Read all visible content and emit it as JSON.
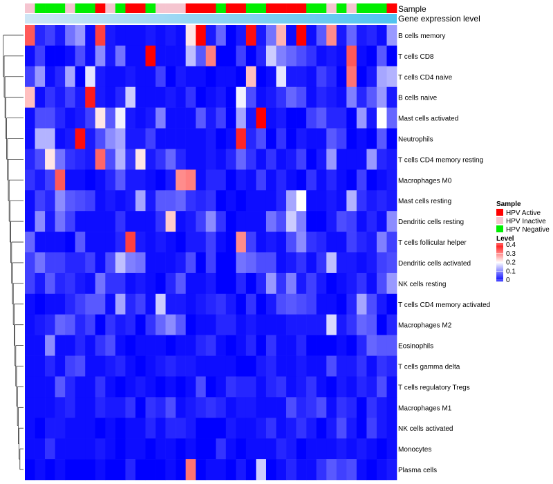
{
  "chart_data": {
    "type": "heatmap",
    "title": "",
    "annotation_tracks": [
      "Sample",
      "Gene expression level"
    ],
    "sample_groups": [
      "HPV Inactive",
      "HPV Negative",
      "HPV Negative",
      "HPV Negative",
      "HPV Inactive",
      "HPV Negative",
      "HPV Negative",
      "HPV Active",
      "HPV Inactive",
      "HPV Negative",
      "HPV Active",
      "HPV Active",
      "HPV Negative",
      "HPV Inactive",
      "HPV Inactive",
      "HPV Inactive",
      "HPV Active",
      "HPV Active",
      "HPV Active",
      "HPV Negative",
      "HPV Active",
      "HPV Active",
      "HPV Negative",
      "HPV Negative",
      "HPV Active",
      "HPV Active",
      "HPV Active",
      "HPV Active",
      "HPV Negative",
      "HPV Negative",
      "HPV Inactive",
      "HPV Negative",
      "HPV Inactive",
      "HPV Negative",
      "HPV Negative",
      "HPV Negative",
      "HPV Active"
    ],
    "rows": [
      "B cells memory",
      "T cells CD8",
      "T cells CD4 naive",
      "B cells naive",
      "Mast cells activated",
      "Neutrophils",
      "T cells CD4 memory resting",
      "Macrophages M0",
      "Mast cells resting",
      "Dendritic cells resting",
      "T cells follicular helper",
      "Dendritic cells activated",
      "NK cells resting",
      "T cells CD4 memory activated",
      "Macrophages M2",
      "Eosinophils",
      "T cells gamma delta",
      "T cells regulatory  Tregs",
      "Macrophages M1",
      "NK cells activated",
      "Monocytes",
      "Plasma cells"
    ],
    "values": [
      [
        0.33,
        0.03,
        0.05,
        0.02,
        0.09,
        0.12,
        0.01,
        0.35,
        0.02,
        0.01,
        0.01,
        0.01,
        0.02,
        0.01,
        0.02,
        0.01,
        0.22,
        0.4,
        0.02,
        0.08,
        0.0,
        0.02,
        0.39,
        0.02,
        0.09,
        0.26,
        0.01,
        0.41,
        0.01,
        0.07,
        0.29,
        0.02,
        0.08,
        0.02,
        0.03,
        0.01,
        0.12
      ],
      [
        0.01,
        0.05,
        0.0,
        0.0,
        0.01,
        0.06,
        0.01,
        0.11,
        0.02,
        0.09,
        0.01,
        0.01,
        0.41,
        0.01,
        0.01,
        0.01,
        0.15,
        0.07,
        0.3,
        0.0,
        0.0,
        0.05,
        0.0,
        0.03,
        0.16,
        0.1,
        0.08,
        0.06,
        0.04,
        0.01,
        0.02,
        0.01,
        0.33,
        0.01,
        0.0,
        0.07,
        0.0
      ],
      [
        0.05,
        0.12,
        0.01,
        0.03,
        0.13,
        0.0,
        0.18,
        0.02,
        0.01,
        0.01,
        0.02,
        0.01,
        0.01,
        0.05,
        0.0,
        0.02,
        0.01,
        0.01,
        0.0,
        0.01,
        0.01,
        0.0,
        0.25,
        0.0,
        0.01,
        0.18,
        0.02,
        0.02,
        0.01,
        0.05,
        0.03,
        0.0,
        0.31,
        0.0,
        0.02,
        0.13,
        0.14
      ],
      [
        0.25,
        0.01,
        0.04,
        0.02,
        0.05,
        0.02,
        0.38,
        0.02,
        0.01,
        0.03,
        0.16,
        0.01,
        0.01,
        0.01,
        0.02,
        0.01,
        0.04,
        0.0,
        0.01,
        0.02,
        0.0,
        0.19,
        0.06,
        0.01,
        0.02,
        0.04,
        0.08,
        0.06,
        0.01,
        0.03,
        0.02,
        0.01,
        0.1,
        0.03,
        0.07,
        0.12,
        0.02
      ],
      [
        0.01,
        0.06,
        0.06,
        0.03,
        0.01,
        0.02,
        0.05,
        0.22,
        0.07,
        0.19,
        0.02,
        0.01,
        0.02,
        0.1,
        0.01,
        0.01,
        0.01,
        0.07,
        0.02,
        0.05,
        0.0,
        0.13,
        0.02,
        0.4,
        0.01,
        0.02,
        0.0,
        0.0,
        0.05,
        0.07,
        0.03,
        0.03,
        0.0,
        0.12,
        0.02,
        0.2,
        0.08
      ],
      [
        0.01,
        0.14,
        0.14,
        0.01,
        0.02,
        0.39,
        0.02,
        0.06,
        0.11,
        0.13,
        0.02,
        0.02,
        0.05,
        0.01,
        0.01,
        0.01,
        0.01,
        0.01,
        0.02,
        0.0,
        0.01,
        0.37,
        0.03,
        0.06,
        0.0,
        0.04,
        0.0,
        0.02,
        0.01,
        0.01,
        0.07,
        0.05,
        0.0,
        0.01,
        0.0,
        0.07,
        0.0
      ],
      [
        0.03,
        0.06,
        0.22,
        0.09,
        0.04,
        0.03,
        0.02,
        0.32,
        0.06,
        0.14,
        0.04,
        0.22,
        0.02,
        0.04,
        0.08,
        0.03,
        0.01,
        0.01,
        0.02,
        0.01,
        0.03,
        0.08,
        0.04,
        0.01,
        0.04,
        0.01,
        0.02,
        0.05,
        0.0,
        0.02,
        0.12,
        0.01,
        0.01,
        0.01,
        0.12,
        0.03,
        0.02
      ],
      [
        0.04,
        0.02,
        0.05,
        0.33,
        0.01,
        0.01,
        0.0,
        0.01,
        0.03,
        0.07,
        0.02,
        0.02,
        0.01,
        0.0,
        0.02,
        0.29,
        0.3,
        0.01,
        0.03,
        0.03,
        0.0,
        0.02,
        0.01,
        0.05,
        0.01,
        0.03,
        0.01,
        0.0,
        0.04,
        0.01,
        0.03,
        0.01,
        0.0,
        0.05,
        0.0,
        0.01,
        0.02
      ],
      [
        0.01,
        0.05,
        0.03,
        0.11,
        0.07,
        0.06,
        0.05,
        0.01,
        0.02,
        0.01,
        0.02,
        0.13,
        0.02,
        0.07,
        0.07,
        0.08,
        0.04,
        0.03,
        0.04,
        0.0,
        0.01,
        0.0,
        0.01,
        0.01,
        0.01,
        0.03,
        0.13,
        0.2,
        0.01,
        0.01,
        0.02,
        0.01,
        0.14,
        0.04,
        0.02,
        0.03,
        0.02
      ],
      [
        0.01,
        0.11,
        0.02,
        0.09,
        0.05,
        0.01,
        0.01,
        0.01,
        0.01,
        0.04,
        0.01,
        0.01,
        0.01,
        0.04,
        0.24,
        0.01,
        0.02,
        0.05,
        0.11,
        0.04,
        0.0,
        0.01,
        0.01,
        0.01,
        0.09,
        0.06,
        0.16,
        0.1,
        0.0,
        0.0,
        0.02,
        0.06,
        0.05,
        0.01,
        0.03,
        0.01,
        0.11
      ],
      [
        0.08,
        0.01,
        0.01,
        0.01,
        0.0,
        0.07,
        0.01,
        0.01,
        0.01,
        0.03,
        0.35,
        0.02,
        0.01,
        0.02,
        0.01,
        0.0,
        0.02,
        0.02,
        0.05,
        0.01,
        0.0,
        0.29,
        0.05,
        0.01,
        0.02,
        0.01,
        0.06,
        0.11,
        0.04,
        0.03,
        0.01,
        0.01,
        0.05,
        0.03,
        0.02,
        0.1,
        0.05
      ],
      [
        0.05,
        0.09,
        0.05,
        0.05,
        0.03,
        0.03,
        0.05,
        0.01,
        0.06,
        0.15,
        0.1,
        0.09,
        0.01,
        0.01,
        0.01,
        0.02,
        0.06,
        0.0,
        0.05,
        0.0,
        0.0,
        0.09,
        0.08,
        0.06,
        0.06,
        0.01,
        0.02,
        0.04,
        0.01,
        0.04,
        0.15,
        0.02,
        0.02,
        0.01,
        0.02,
        0.05,
        0.06
      ],
      [
        0.05,
        0.02,
        0.07,
        0.03,
        0.04,
        0.02,
        0.01,
        0.09,
        0.04,
        0.04,
        0.01,
        0.02,
        0.01,
        0.0,
        0.03,
        0.07,
        0.01,
        0.01,
        0.02,
        0.0,
        0.0,
        0.03,
        0.0,
        0.03,
        0.12,
        0.04,
        0.1,
        0.02,
        0.05,
        0.02,
        0.0,
        0.01,
        0.02,
        0.04,
        0.01,
        0.06,
        0.12
      ],
      [
        0.01,
        0.0,
        0.01,
        0.01,
        0.03,
        0.05,
        0.07,
        0.07,
        0.01,
        0.13,
        0.03,
        0.05,
        0.01,
        0.16,
        0.02,
        0.02,
        0.01,
        0.02,
        0.03,
        0.04,
        0.02,
        0.0,
        0.04,
        0.0,
        0.02,
        0.06,
        0.07,
        0.06,
        0.05,
        0.01,
        0.01,
        0.0,
        0.03,
        0.13,
        0.06,
        0.02,
        0.0
      ],
      [
        0.01,
        0.02,
        0.03,
        0.08,
        0.07,
        0.03,
        0.05,
        0.0,
        0.04,
        0.02,
        0.03,
        0.0,
        0.04,
        0.08,
        0.11,
        0.07,
        0.0,
        0.01,
        0.01,
        0.03,
        0.03,
        0.01,
        0.02,
        0.01,
        0.01,
        0.01,
        0.02,
        0.02,
        0.02,
        0.02,
        0.17,
        0.02,
        0.04,
        0.08,
        0.07,
        0.0,
        0.03
      ],
      [
        0.01,
        0.01,
        0.11,
        0.01,
        0.01,
        0.03,
        0.01,
        0.04,
        0.06,
        0.01,
        0.0,
        0.01,
        0.01,
        0.01,
        0.0,
        0.01,
        0.01,
        0.03,
        0.04,
        0.01,
        0.0,
        0.01,
        0.03,
        0.0,
        0.04,
        0.01,
        0.01,
        0.03,
        0.0,
        0.0,
        0.0,
        0.01,
        0.0,
        0.03,
        0.08,
        0.07,
        0.07
      ],
      [
        0.01,
        0.01,
        0.03,
        0.01,
        0.05,
        0.06,
        0.01,
        0.01,
        0.02,
        0.03,
        0.01,
        0.0,
        0.01,
        0.02,
        0.03,
        0.02,
        0.02,
        0.01,
        0.01,
        0.01,
        0.01,
        0.0,
        0.0,
        0.02,
        0.03,
        0.01,
        0.01,
        0.02,
        0.01,
        0.01,
        0.06,
        0.02,
        0.02,
        0.04,
        0.01,
        0.04,
        0.03
      ],
      [
        0.01,
        0.01,
        0.01,
        0.07,
        0.03,
        0.01,
        0.01,
        0.04,
        0.01,
        0.0,
        0.01,
        0.02,
        0.01,
        0.0,
        0.01,
        0.0,
        0.01,
        0.06,
        0.0,
        0.01,
        0.04,
        0.03,
        0.03,
        0.01,
        0.03,
        0.04,
        0.01,
        0.02,
        0.04,
        0.01,
        0.0,
        0.02,
        0.01,
        0.03,
        0.02,
        0.06,
        0.01
      ],
      [
        0.01,
        0.01,
        0.01,
        0.02,
        0.03,
        0.01,
        0.01,
        0.03,
        0.02,
        0.02,
        0.04,
        0.0,
        0.04,
        0.03,
        0.06,
        0.01,
        0.02,
        0.03,
        0.04,
        0.03,
        0.01,
        0.02,
        0.02,
        0.01,
        0.01,
        0.01,
        0.06,
        0.03,
        0.04,
        0.06,
        0.01,
        0.04,
        0.03,
        0.0,
        0.04,
        0.02,
        0.01
      ],
      [
        0.01,
        0.0,
        0.02,
        0.02,
        0.01,
        0.01,
        0.01,
        0.0,
        0.01,
        0.0,
        0.01,
        0.01,
        0.03,
        0.01,
        0.03,
        0.03,
        0.02,
        0.0,
        0.0,
        0.0,
        0.02,
        0.01,
        0.01,
        0.02,
        0.04,
        0.01,
        0.02,
        0.04,
        0.02,
        0.0,
        0.02,
        0.06,
        0.02,
        0.0,
        0.05,
        0.02,
        0.01
      ],
      [
        0.01,
        0.01,
        0.04,
        0.01,
        0.01,
        0.01,
        0.01,
        0.02,
        0.01,
        0.0,
        0.01,
        0.01,
        0.0,
        0.01,
        0.01,
        0.0,
        0.01,
        0.0,
        0.0,
        0.04,
        0.01,
        0.0,
        0.01,
        0.01,
        0.01,
        0.03,
        0.02,
        0.0,
        0.01,
        0.01,
        0.01,
        0.02,
        0.01,
        0.02,
        0.01,
        0.0,
        0.01
      ],
      [
        0.0,
        0.01,
        0.0,
        0.01,
        0.0,
        0.0,
        0.0,
        0.01,
        0.0,
        0.0,
        0.03,
        0.0,
        0.0,
        0.0,
        0.01,
        0.0,
        0.31,
        0.0,
        0.01,
        0.01,
        0.0,
        0.02,
        0.0,
        0.16,
        0.0,
        0.01,
        0.03,
        0.01,
        0.01,
        0.04,
        0.07,
        0.05,
        0.06,
        0.01,
        0.0,
        0.01,
        0.02
      ]
    ],
    "legend": {
      "sample_title": "Sample",
      "sample_entries": [
        {
          "name": "HPV Active",
          "color": "#ff0000"
        },
        {
          "name": "HPV Inactive",
          "color": "#f5c5d0"
        },
        {
          "name": "HPV Negative",
          "color": "#00ee00"
        }
      ],
      "level_title": "Level",
      "level_ticks": [
        "0.4",
        "0.3",
        "0.2",
        "0.1",
        "0"
      ],
      "level_range": [
        0,
        0.4
      ],
      "level_colors": [
        "#0000ff",
        "#ffffff",
        "#ff0000"
      ],
      "placement": "right"
    },
    "expression_bar_colors": [
      "#cfe6f6",
      "#4fc3f0"
    ]
  }
}
